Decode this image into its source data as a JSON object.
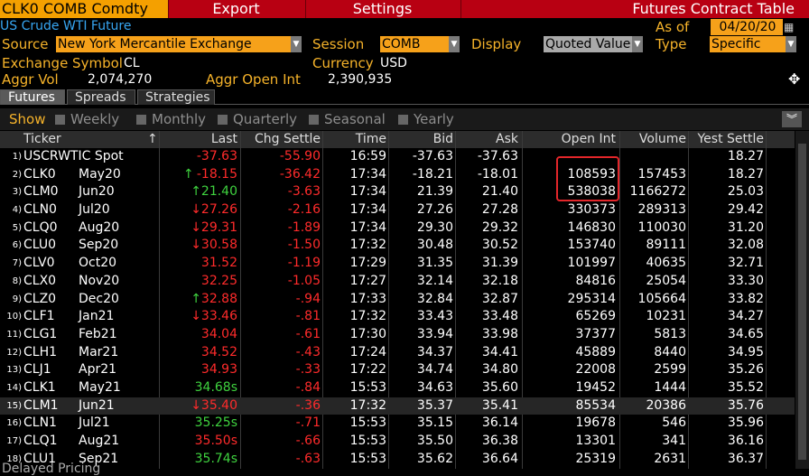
{
  "topbar": {
    "command": "CLK0 COMB Comdty",
    "export": "Export",
    "settings": "Settings",
    "title": "Futures Contract Table"
  },
  "subtitle": "US Crude WTI Future",
  "form": {
    "as_of_label": "As of",
    "as_of_value": "04/20/20",
    "source_label": "Source",
    "source_value": "New York Mercantile Exchange",
    "session_label": "Session",
    "session_value": "COMB",
    "display_label": "Display",
    "display_value": "Quoted Value",
    "type_label": "Type",
    "type_value": "Specific",
    "exchange_symbol_label": "Exchange Symbol",
    "exchange_symbol_value": "CL",
    "currency_label": "Currency",
    "currency_value": "USD",
    "aggr_vol_label": "Aggr Vol",
    "aggr_vol_value": "2,074,270",
    "aggr_oi_label": "Aggr Open Int",
    "aggr_oi_value": "2,390,935"
  },
  "tabs": [
    "Futures",
    "Spreads",
    "Strategies"
  ],
  "show": {
    "label": "Show",
    "options": [
      "Weekly",
      "Monthly",
      "Quarterly",
      "Seasonal",
      "Yearly"
    ]
  },
  "columns": [
    "Ticker",
    "Last",
    "Chg Settle",
    "Time",
    "Bid",
    "Ask",
    "Open Int",
    "Volume",
    "Yest Settle"
  ],
  "rows": [
    {
      "idx": "1)",
      "ticker": "USCRWTIC Spot",
      "month": "",
      "last": "-37.63",
      "last_color": "red",
      "last_arrow": "",
      "chg": "-55.90",
      "time": "16:59",
      "bid": "-37.63",
      "ask": "-37.63",
      "oi": "",
      "vol": "",
      "yest": "18.27"
    },
    {
      "idx": "2)",
      "ticker": "CLK0",
      "month": "May20",
      "last": "-18.15",
      "last_color": "red",
      "last_arrow": "↑",
      "arrow_color": "grn",
      "chg": "-36.42",
      "time": "17:34",
      "bid": "-18.21",
      "ask": "-18.01",
      "oi": "108593",
      "vol": "157453",
      "yest": "18.27"
    },
    {
      "idx": "3)",
      "ticker": "CLM0",
      "month": "Jun20",
      "last": "21.40",
      "last_color": "grn",
      "last_arrow": "↑",
      "arrow_color": "grn",
      "chg": "-3.63",
      "time": "17:34",
      "bid": "21.39",
      "ask": "21.40",
      "oi": "538038",
      "vol": "1166272",
      "yest": "25.03"
    },
    {
      "idx": "4)",
      "ticker": "CLN0",
      "month": "Jul20",
      "last": "27.26",
      "last_color": "red",
      "last_arrow": "↓",
      "arrow_color": "red",
      "chg": "-2.16",
      "time": "17:34",
      "bid": "27.26",
      "ask": "27.28",
      "oi": "330373",
      "vol": "289313",
      "yest": "29.42"
    },
    {
      "idx": "5)",
      "ticker": "CLQ0",
      "month": "Aug20",
      "last": "29.31",
      "last_color": "red",
      "last_arrow": "↓",
      "arrow_color": "red",
      "chg": "-1.89",
      "time": "17:34",
      "bid": "29.30",
      "ask": "29.32",
      "oi": "146830",
      "vol": "110030",
      "yest": "31.20"
    },
    {
      "idx": "6)",
      "ticker": "CLU0",
      "month": "Sep20",
      "last": "30.58",
      "last_color": "red",
      "last_arrow": "↓",
      "arrow_color": "red",
      "chg": "-1.50",
      "time": "17:32",
      "bid": "30.48",
      "ask": "30.52",
      "oi": "153740",
      "vol": "89111",
      "yest": "32.08"
    },
    {
      "idx": "7)",
      "ticker": "CLV0",
      "month": "Oct20",
      "last": "31.52",
      "last_color": "red",
      "last_arrow": "",
      "chg": "-1.19",
      "time": "17:29",
      "bid": "31.35",
      "ask": "31.39",
      "oi": "101997",
      "vol": "40635",
      "yest": "32.71"
    },
    {
      "idx": "8)",
      "ticker": "CLX0",
      "month": "Nov20",
      "last": "32.25",
      "last_color": "red",
      "last_arrow": "",
      "chg": "-1.05",
      "time": "17:27",
      "bid": "32.14",
      "ask": "32.18",
      "oi": "84816",
      "vol": "25054",
      "yest": "33.30"
    },
    {
      "idx": "9)",
      "ticker": "CLZ0",
      "month": "Dec20",
      "last": "32.88",
      "last_color": "red",
      "last_arrow": "↑",
      "arrow_color": "grn",
      "chg": "-.94",
      "time": "17:33",
      "bid": "32.84",
      "ask": "32.87",
      "oi": "295314",
      "vol": "105664",
      "yest": "33.82"
    },
    {
      "idx": "10)",
      "ticker": "CLF1",
      "month": "Jan21",
      "last": "33.46",
      "last_color": "red",
      "last_arrow": "↓",
      "arrow_color": "red",
      "chg": "-.81",
      "time": "17:32",
      "bid": "33.43",
      "ask": "33.48",
      "oi": "65269",
      "vol": "10231",
      "yest": "34.27"
    },
    {
      "idx": "11)",
      "ticker": "CLG1",
      "month": "Feb21",
      "last": "34.04",
      "last_color": "red",
      "last_arrow": "",
      "chg": "-.61",
      "time": "17:30",
      "bid": "33.94",
      "ask": "33.98",
      "oi": "37377",
      "vol": "5813",
      "yest": "34.65"
    },
    {
      "idx": "12)",
      "ticker": "CLH1",
      "month": "Mar21",
      "last": "34.52",
      "last_color": "red",
      "last_arrow": "",
      "chg": "-.43",
      "time": "17:24",
      "bid": "34.37",
      "ask": "34.41",
      "oi": "45889",
      "vol": "8440",
      "yest": "34.95"
    },
    {
      "idx": "13)",
      "ticker": "CLJ1",
      "month": "Apr21",
      "last": "34.93",
      "last_color": "red",
      "last_arrow": "",
      "chg": "-.33",
      "time": "17:22",
      "bid": "34.74",
      "ask": "34.80",
      "oi": "22008",
      "vol": "2599",
      "yest": "35.26"
    },
    {
      "idx": "14)",
      "ticker": "CLK1",
      "month": "May21",
      "last": "34.68s",
      "last_color": "grn",
      "last_arrow": "",
      "chg": "-.84",
      "time": "15:53",
      "bid": "34.63",
      "ask": "35.60",
      "oi": "19452",
      "vol": "1444",
      "yest": "35.52"
    },
    {
      "idx": "15)",
      "ticker": "CLM1",
      "month": "Jun21",
      "last": "35.40",
      "last_color": "red",
      "last_arrow": "↓",
      "arrow_color": "red",
      "chg": "-.36",
      "time": "17:32",
      "bid": "35.37",
      "ask": "35.41",
      "oi": "85534",
      "vol": "20386",
      "yest": "35.76",
      "hl": true
    },
    {
      "idx": "16)",
      "ticker": "CLN1",
      "month": "Jul21",
      "last": "35.25s",
      "last_color": "grn",
      "last_arrow": "",
      "chg": "-.71",
      "time": "15:53",
      "bid": "35.15",
      "ask": "36.14",
      "oi": "19678",
      "vol": "546",
      "yest": "35.96"
    },
    {
      "idx": "17)",
      "ticker": "CLQ1",
      "month": "Aug21",
      "last": "35.50s",
      "last_color": "red",
      "last_arrow": "",
      "chg": "-.66",
      "time": "15:53",
      "bid": "35.50",
      "ask": "36.38",
      "oi": "13301",
      "vol": "341",
      "yest": "36.16"
    },
    {
      "idx": "18)",
      "ticker": "CLU1",
      "month": "Sep21",
      "last": "35.74s",
      "last_color": "grn",
      "last_arrow": "",
      "chg": "-.63",
      "time": "15:53",
      "bid": "35.62",
      "ask": "36.64",
      "oi": "25319",
      "vol": "2631",
      "yest": "36.37"
    }
  ],
  "footer": "Delayed Pricing",
  "colors": {
    "accent": "#f6a11a",
    "topbar": "#b80012",
    "label": "#f6b32a",
    "red": "#ff2b2b",
    "green": "#3fd33f",
    "highlight_box": "#e3262a"
  }
}
